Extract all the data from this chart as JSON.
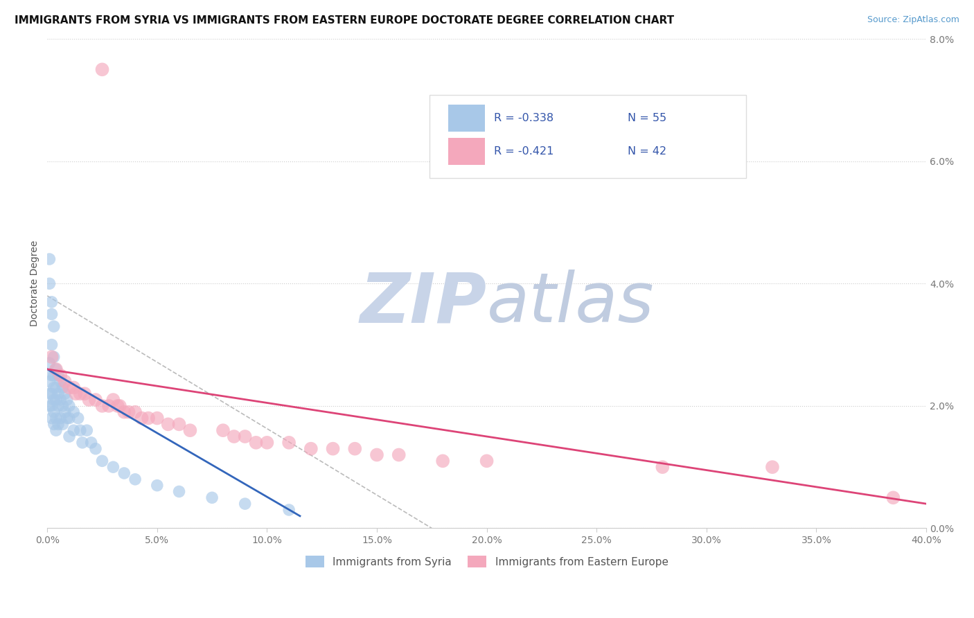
{
  "title": "IMMIGRANTS FROM SYRIA VS IMMIGRANTS FROM EASTERN EUROPE DOCTORATE DEGREE CORRELATION CHART",
  "source_text": "Source: ZipAtlas.com",
  "ylabel": "Doctorate Degree",
  "legend_entries": [
    {
      "label": "Immigrants from Syria",
      "color": "#a8c8e8",
      "r": "-0.338",
      "n": "55"
    },
    {
      "label": "Immigrants from Eastern Europe",
      "color": "#f4a8bc",
      "r": "-0.421",
      "n": "42"
    }
  ],
  "xlim": [
    0.0,
    0.4
  ],
  "ylim": [
    0.0,
    0.08
  ],
  "xtick_vals": [
    0.0,
    0.05,
    0.1,
    0.15,
    0.2,
    0.25,
    0.3,
    0.35,
    0.4
  ],
  "xtick_labels": [
    "0.0%",
    "5.0%",
    "10.0%",
    "15.0%",
    "20.0%",
    "25.0%",
    "30.0%",
    "35.0%",
    "40.0%"
  ],
  "yticks_right": [
    0.0,
    0.02,
    0.04,
    0.06,
    0.08
  ],
  "ytick_labels_right": [
    "0.0%",
    "2.0%",
    "4.0%",
    "6.0%",
    "8.0%"
  ],
  "grid_color": "#cccccc",
  "background_color": "#ffffff",
  "scatter_color_blue": "#a8c8e8",
  "scatter_color_pink": "#f4a8bc",
  "line_color_blue": "#3366bb",
  "line_color_pink": "#dd4477",
  "line_color_dashed": "#bbbbbb",
  "watermark": "ZIPatlas",
  "watermark_color_zip": "#c8d4e8",
  "watermark_color_atlas": "#c0cce0",
  "r_text_color": "#3355aa",
  "title_color": "#111111",
  "source_color": "#5599cc",
  "ylabel_color": "#555555",
  "tick_color": "#777777",
  "blue_line_x0": 0.0,
  "blue_line_x1": 0.115,
  "blue_line_y0": 0.026,
  "blue_line_y1": 0.002,
  "pink_line_x0": 0.0,
  "pink_line_x1": 0.4,
  "pink_line_y0": 0.026,
  "pink_line_y1": 0.004,
  "dash_line_x0": 0.0,
  "dash_line_x1": 0.175,
  "dash_line_y0": 0.038,
  "dash_line_y1": 0.0
}
